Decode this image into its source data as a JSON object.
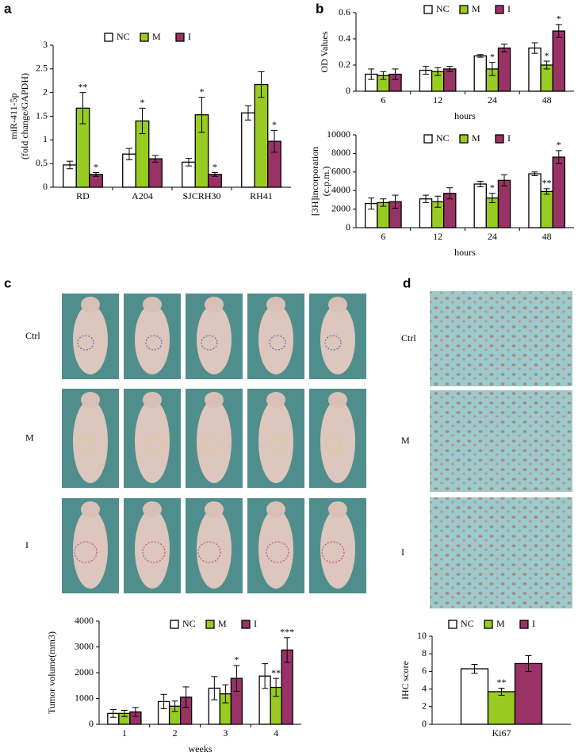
{
  "panel_labels": [
    "a",
    "b",
    "c",
    "d"
  ],
  "mouse_rows": [
    "Ctrl",
    "M",
    "I"
  ],
  "ihc_rows": [
    "Ctrl",
    "M",
    "I"
  ],
  "chart_data": [
    {
      "type": "bar",
      "ylabel": [
        "miR-411-5p",
        "(fold change/GAPDH)"
      ],
      "categories": [
        "RD",
        "A204",
        "SJCRH30",
        "RH41"
      ],
      "ylim": [
        0,
        3
      ],
      "yticks": [
        0,
        0.5,
        1,
        1.5,
        2,
        2.5,
        3
      ],
      "series": [
        {
          "name": "NC",
          "color": "#ffffff",
          "values": [
            0.47,
            0.7,
            0.53,
            1.57
          ],
          "errors": [
            0.08,
            0.12,
            0.08,
            0.15
          ],
          "significance": [
            null,
            null,
            null,
            null
          ]
        },
        {
          "name": "M",
          "color": "#99cc22",
          "values": [
            1.67,
            1.4,
            1.53,
            2.17
          ],
          "errors": [
            0.33,
            0.27,
            0.37,
            0.27
          ],
          "significance": [
            "**",
            "*",
            "*",
            null
          ]
        },
        {
          "name": "I",
          "color": "#993366",
          "values": [
            0.27,
            0.6,
            0.27,
            0.97
          ],
          "errors": [
            0.04,
            0.07,
            0.04,
            0.23
          ],
          "significance": [
            "*",
            null,
            "*",
            "*"
          ]
        }
      ]
    },
    {
      "type": "bar",
      "ylabel": [
        "OD Values"
      ],
      "xlabel": "hours",
      "categories": [
        "6",
        "12",
        "24",
        "48"
      ],
      "ylim": [
        0,
        0.6
      ],
      "yticks": [
        0,
        0.2,
        0.4,
        0.6
      ],
      "series": [
        {
          "name": "NC",
          "color": "#ffffff",
          "values": [
            0.13,
            0.16,
            0.27,
            0.33
          ],
          "errors": [
            0.04,
            0.03,
            0.01,
            0.04
          ],
          "significance": [
            null,
            null,
            null,
            null
          ]
        },
        {
          "name": "M",
          "color": "#99cc22",
          "values": [
            0.12,
            0.15,
            0.17,
            0.2
          ],
          "errors": [
            0.03,
            0.03,
            0.05,
            0.03
          ],
          "significance": [
            null,
            null,
            "*",
            "*"
          ]
        },
        {
          "name": "I",
          "color": "#993366",
          "values": [
            0.13,
            0.17,
            0.33,
            0.46
          ],
          "errors": [
            0.04,
            0.02,
            0.03,
            0.05
          ],
          "significance": [
            null,
            null,
            null,
            "*"
          ]
        }
      ]
    },
    {
      "type": "bar",
      "ylabel": [
        "[3H]incorporation",
        "(c.p.m.)"
      ],
      "xlabel": "hours",
      "categories": [
        "6",
        "12",
        "24",
        "48"
      ],
      "ylim": [
        0,
        10000
      ],
      "yticks": [
        0,
        2000,
        4000,
        6000,
        8000,
        10000
      ],
      "series": [
        {
          "name": "NC",
          "color": "#ffffff",
          "values": [
            2600,
            3100,
            4700,
            5800
          ],
          "errors": [
            600,
            400,
            300,
            200
          ],
          "significance": [
            null,
            null,
            null,
            null
          ]
        },
        {
          "name": "M",
          "color": "#99cc22",
          "values": [
            2700,
            2800,
            3200,
            3900
          ],
          "errors": [
            400,
            600,
            500,
            300
          ],
          "significance": [
            null,
            null,
            "*",
            "**"
          ]
        },
        {
          "name": "I",
          "color": "#993366",
          "values": [
            2800,
            3700,
            5100,
            7600
          ],
          "errors": [
            700,
            600,
            600,
            700
          ],
          "significance": [
            null,
            null,
            null,
            "*"
          ]
        }
      ]
    },
    {
      "type": "bar",
      "ylabel": [
        "Tumor volume(mm3)"
      ],
      "xlabel": "weeks",
      "categories": [
        "1",
        "2",
        "3",
        "4"
      ],
      "ylim": [
        0,
        4000
      ],
      "yticks": [
        0,
        1000,
        2000,
        3000,
        4000
      ],
      "series": [
        {
          "name": "NC",
          "color": "#ffffff",
          "values": [
            420,
            880,
            1400,
            1870
          ],
          "errors": [
            150,
            280,
            450,
            480
          ],
          "significance": [
            null,
            null,
            null,
            null
          ]
        },
        {
          "name": "M",
          "color": "#99cc22",
          "values": [
            420,
            700,
            1180,
            1430
          ],
          "errors": [
            120,
            200,
            350,
            350
          ],
          "significance": [
            null,
            null,
            null,
            "**"
          ]
        },
        {
          "name": "I",
          "color": "#993366",
          "values": [
            480,
            1050,
            1780,
            2880
          ],
          "errors": [
            170,
            400,
            500,
            480
          ],
          "significance": [
            null,
            null,
            "*",
            "***"
          ]
        }
      ]
    },
    {
      "type": "bar",
      "ylabel": [
        "IHC score"
      ],
      "categories": [
        "Ki67"
      ],
      "ylim": [
        0,
        10
      ],
      "yticks": [
        0,
        2,
        4,
        6,
        8,
        10
      ],
      "series": [
        {
          "name": "NC",
          "color": "#ffffff",
          "values": [
            6.3
          ],
          "errors": [
            0.5
          ],
          "significance": [
            null
          ]
        },
        {
          "name": "M",
          "color": "#99cc22",
          "values": [
            3.7
          ],
          "errors": [
            0.4
          ],
          "significance": [
            "**"
          ]
        },
        {
          "name": "I",
          "color": "#993366",
          "values": [
            6.9
          ],
          "errors": [
            0.9
          ],
          "significance": [
            null
          ]
        }
      ]
    }
  ]
}
